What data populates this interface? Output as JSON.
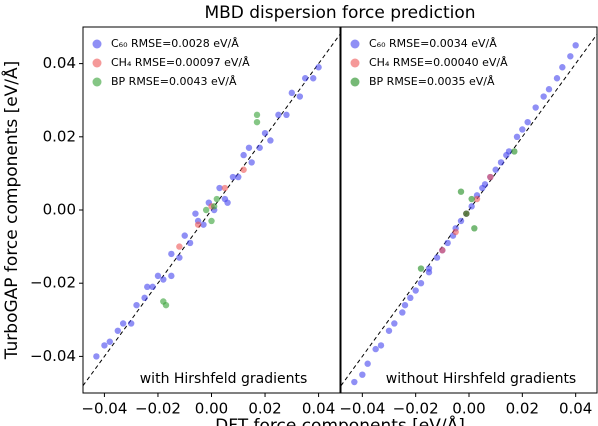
{
  "title": "MBD dispersion force prediction",
  "ylabel": "TurboGAP force components [eV/Å]",
  "xlabel": "DFT force components [eV/Å]",
  "chart_data": [
    {
      "type": "scatter",
      "annotation": "with Hirshfeld gradients",
      "legend": "upper left",
      "diagonal": true,
      "xlim": [
        -0.048,
        0.048
      ],
      "ylim": [
        -0.05,
        0.05
      ],
      "xticks": [
        {
          "value": -0.04,
          "label": "−0.04"
        },
        {
          "value": -0.02,
          "label": "−0.02"
        },
        {
          "value": 0,
          "label": "0.00"
        },
        0.02,
        0.04
      ],
      "yticks": [
        {
          "value": -0.04,
          "label": "−0.04"
        },
        {
          "value": -0.02,
          "label": "−0.02"
        },
        {
          "value": 0,
          "label": "0.00"
        },
        0.02,
        0.04
      ],
      "series": [
        {
          "name": "C₆₀ RMSE=0.0028 eV/Å",
          "color": "#4444ee",
          "x": [
            -0.043,
            -0.04,
            -0.038,
            -0.035,
            -0.033,
            -0.03,
            -0.028,
            -0.025,
            -0.022,
            -0.02,
            -0.018,
            -0.015,
            -0.012,
            -0.01,
            -0.008,
            -0.005,
            -0.003,
            -0.001,
            0.001,
            0.003,
            0.005,
            0.008,
            0.01,
            0.012,
            0.015,
            0.018,
            0.02,
            0.022,
            0.025,
            0.028,
            0.03,
            0.033,
            0.035,
            0.038,
            0.04,
            -0.015,
            0.006,
            -0.006,
            0.014,
            -0.024
          ],
          "y": [
            -0.04,
            -0.037,
            -0.036,
            -0.033,
            -0.031,
            -0.031,
            -0.026,
            -0.024,
            -0.021,
            -0.018,
            -0.019,
            -0.012,
            -0.013,
            -0.007,
            -0.009,
            -0.003,
            -0.004,
            0.002,
            0.0,
            0.006,
            0.003,
            0.009,
            0.009,
            0.015,
            0.013,
            0.017,
            0.021,
            0.019,
            0.026,
            0.026,
            0.032,
            0.031,
            0.036,
            0.036,
            0.039,
            -0.018,
            0.002,
            -0.001,
            0.017,
            -0.021
          ]
        },
        {
          "name": "CH₄ RMSE=0.00097 eV/Å",
          "color": "#ee5555",
          "x": [
            -0.012,
            -0.005,
            0.0,
            0.005,
            0.012
          ],
          "y": [
            -0.01,
            -0.004,
            0.001,
            0.006,
            0.011
          ]
        },
        {
          "name": "BP RMSE=0.0043 eV/Å",
          "color": "#33a033",
          "x": [
            -0.018,
            -0.017,
            0.0,
            0.001,
            0.002,
            0.017,
            0.017,
            -0.002
          ],
          "y": [
            -0.025,
            -0.026,
            -0.003,
            0.001,
            0.003,
            0.024,
            0.026,
            0.0
          ]
        }
      ]
    },
    {
      "type": "scatter",
      "annotation": "without Hirshfeld gradients",
      "legend": "upper left",
      "diagonal": true,
      "xlim": [
        -0.048,
        0.048
      ],
      "ylim": [
        -0.05,
        0.05
      ],
      "xticks": [
        {
          "value": -0.04,
          "label": "−0.04"
        },
        {
          "value": -0.02,
          "label": "−0.02"
        },
        {
          "value": 0,
          "label": "0.00"
        },
        0.02,
        0.04
      ],
      "series": [
        {
          "name": "C₆₀ RMSE=0.0034 eV/Å",
          "color": "#4444ee",
          "x": [
            -0.043,
            -0.04,
            -0.038,
            -0.035,
            -0.033,
            -0.03,
            -0.028,
            -0.025,
            -0.022,
            -0.02,
            -0.018,
            -0.015,
            -0.012,
            -0.01,
            -0.008,
            -0.005,
            -0.003,
            -0.001,
            0.001,
            0.003,
            0.005,
            0.008,
            0.01,
            0.012,
            0.015,
            0.018,
            0.02,
            0.022,
            0.025,
            0.028,
            0.03,
            0.033,
            0.035,
            0.038,
            0.04,
            -0.015,
            0.006,
            -0.006,
            0.014,
            -0.024
          ],
          "y": [
            -0.047,
            -0.045,
            -0.042,
            -0.038,
            -0.037,
            -0.033,
            -0.031,
            -0.028,
            -0.024,
            -0.022,
            -0.02,
            -0.016,
            -0.013,
            -0.011,
            -0.009,
            -0.005,
            -0.003,
            -0.001,
            0.001,
            0.004,
            0.006,
            0.009,
            0.011,
            0.013,
            0.016,
            0.02,
            0.022,
            0.024,
            0.028,
            0.031,
            0.033,
            0.036,
            0.039,
            0.042,
            0.045,
            -0.017,
            0.007,
            -0.007,
            0.015,
            -0.026
          ]
        },
        {
          "name": "CH₄ RMSE=0.00040 eV/Å",
          "color": "#ee5555",
          "x": [
            -0.01,
            -0.005,
            -0.001,
            0.003,
            0.008
          ],
          "y": [
            -0.011,
            -0.006,
            -0.001,
            0.003,
            0.009
          ]
        },
        {
          "name": "BP RMSE=0.0035 eV/Å",
          "color": "#1a8a1a",
          "x": [
            -0.018,
            -0.003,
            0.002,
            0.017,
            -0.001,
            0.001
          ],
          "y": [
            -0.016,
            0.005,
            -0.005,
            0.016,
            -0.001,
            0.003
          ]
        }
      ]
    }
  ]
}
